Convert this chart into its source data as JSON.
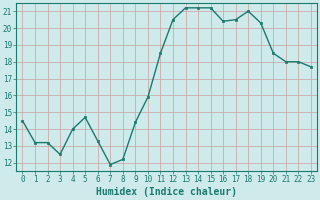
{
  "x": [
    0,
    1,
    2,
    3,
    4,
    5,
    6,
    7,
    8,
    9,
    10,
    11,
    12,
    13,
    14,
    15,
    16,
    17,
    18,
    19,
    20,
    21,
    22,
    23
  ],
  "y": [
    14.5,
    13.2,
    13.2,
    12.5,
    14.0,
    14.7,
    13.3,
    11.9,
    12.2,
    14.4,
    15.9,
    18.5,
    20.5,
    21.2,
    21.2,
    21.2,
    20.4,
    20.5,
    21.0,
    20.3,
    18.5,
    18.0,
    18.0,
    17.7
  ],
  "xlabel": "Humidex (Indice chaleur)",
  "ylim": [
    11.5,
    21.5
  ],
  "xlim": [
    -0.5,
    23.5
  ],
  "yticks": [
    12,
    13,
    14,
    15,
    16,
    17,
    18,
    19,
    20,
    21
  ],
  "xticks": [
    0,
    1,
    2,
    3,
    4,
    5,
    6,
    7,
    8,
    9,
    10,
    11,
    12,
    13,
    14,
    15,
    16,
    17,
    18,
    19,
    20,
    21,
    22,
    23
  ],
  "line_color": "#1a7a6e",
  "marker": "s",
  "marker_size": 1.8,
  "bg_color": "#ceeaea",
  "grid_color": "#c9a0a0",
  "tick_label_fontsize": 5.5,
  "xlabel_fontsize": 7.0,
  "line_width": 1.0
}
